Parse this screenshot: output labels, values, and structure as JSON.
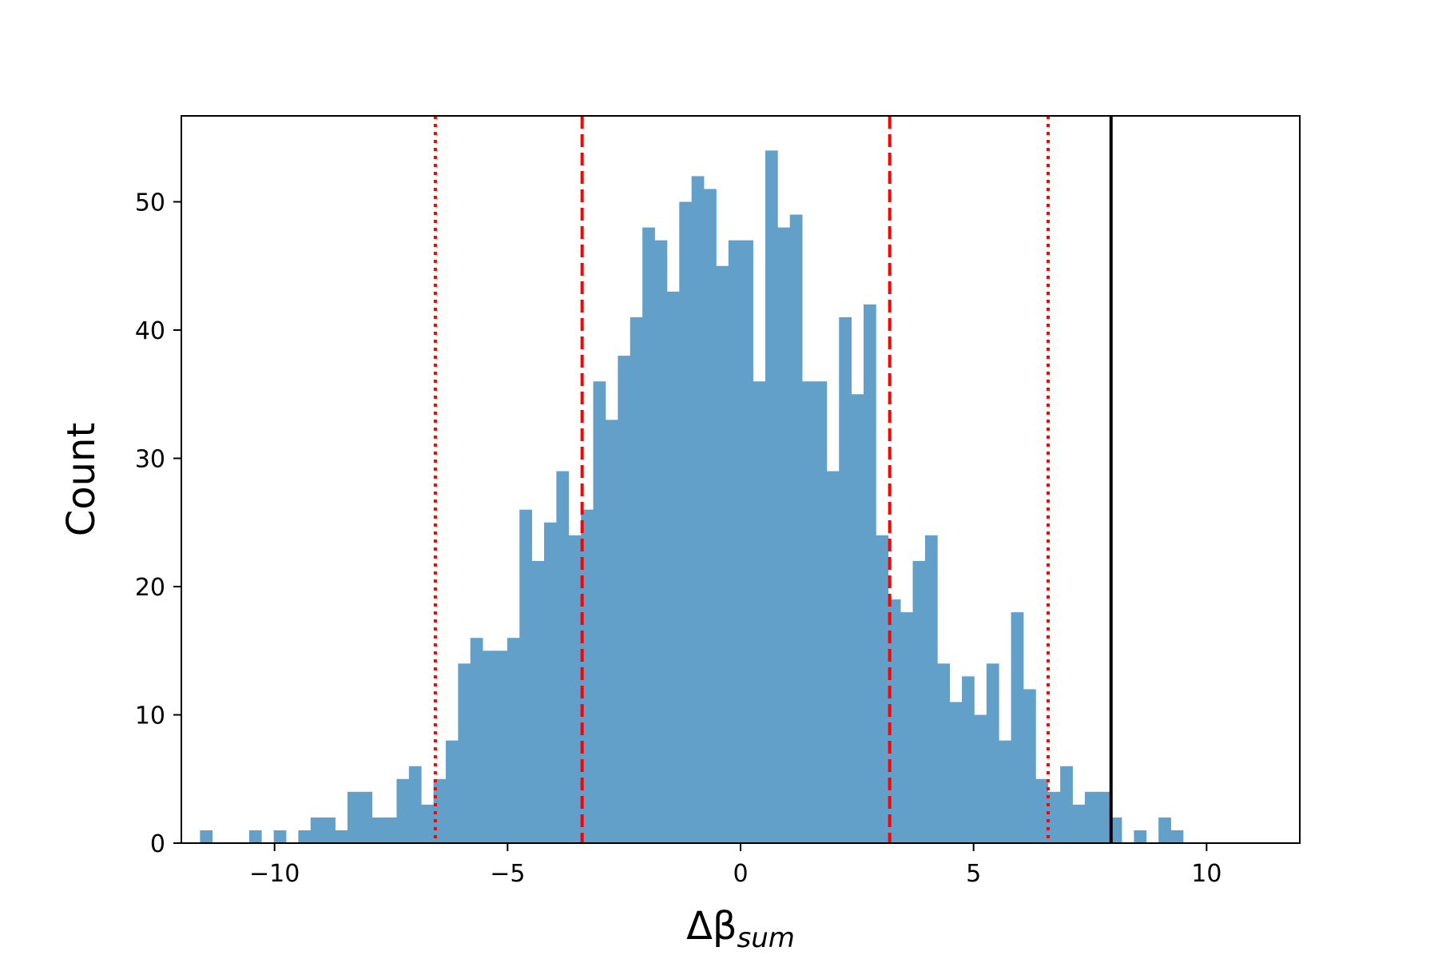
{
  "chart_data": {
    "type": "bar",
    "subtype": "histogram",
    "title": "",
    "xlabel": "Δβ",
    "xlabel_subscript": "sum",
    "ylabel": "Count",
    "xlim": [
      -12,
      12
    ],
    "ylim": [
      0,
      56.7
    ],
    "bin_start": -11.6,
    "bin_width": 0.2637,
    "values": [
      1,
      0,
      0,
      0,
      1,
      0,
      1,
      0,
      1,
      2,
      2,
      1,
      4,
      4,
      2,
      2,
      5,
      6,
      3,
      5,
      8,
      14,
      16,
      15,
      15,
      16,
      26,
      22,
      25,
      29,
      24,
      26,
      36,
      33,
      38,
      41,
      48,
      47,
      43,
      50,
      52,
      51,
      45,
      47,
      47,
      36,
      54,
      48,
      49,
      36,
      36,
      29,
      41,
      35,
      42,
      24,
      19,
      18,
      22,
      24,
      14,
      11,
      13,
      10,
      14,
      8,
      18,
      12,
      5,
      4,
      6,
      3,
      4,
      4,
      2,
      0,
      1,
      0,
      2,
      1
    ],
    "bar_color": "#62A0CA",
    "x_ticks": [
      -10,
      -5,
      0,
      5,
      10
    ],
    "x_tick_labels": [
      "−10",
      "−5",
      "0",
      "5",
      "10"
    ],
    "y_ticks": [
      0,
      10,
      20,
      30,
      40,
      50
    ],
    "y_tick_labels": [
      "0",
      "10",
      "20",
      "30",
      "40",
      "50"
    ],
    "reference_lines": [
      {
        "x": -6.55,
        "style": "dotted",
        "color": "#ff0000"
      },
      {
        "x": -3.4,
        "style": "dashed",
        "color": "#ff0000"
      },
      {
        "x": 3.2,
        "style": "dashed",
        "color": "#ff0000"
      },
      {
        "x": 6.6,
        "style": "dotted",
        "color": "#ff0000"
      },
      {
        "x": 7.95,
        "style": "solid",
        "color": "#000000"
      }
    ],
    "grid": false,
    "legend": "none"
  }
}
